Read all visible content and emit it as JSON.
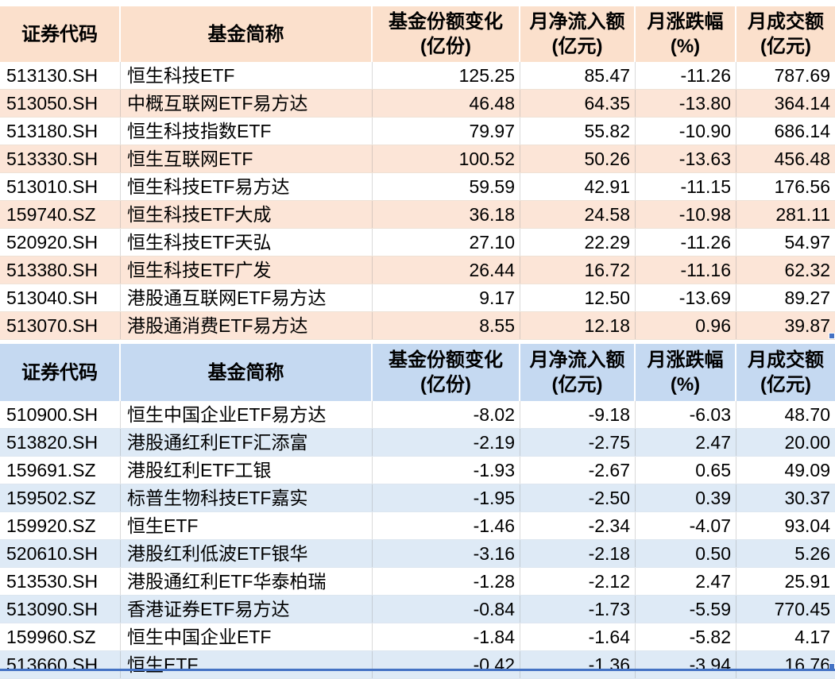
{
  "row_keys": [
    "code",
    "name",
    "share_change",
    "net_inflow",
    "pct_change",
    "turnover"
  ],
  "columns": [
    {
      "title": "证券代码",
      "sub": ""
    },
    {
      "title": "基金简称",
      "sub": ""
    },
    {
      "title": "基金份额变化",
      "sub": "(亿份)"
    },
    {
      "title": "月净流入额",
      "sub": "(亿元)"
    },
    {
      "title": "月涨跌幅",
      "sub": "(%)"
    },
    {
      "title": "月成交额",
      "sub": "(亿元)"
    }
  ],
  "tables": [
    {
      "theme": {
        "header_bg": "#FBE0CC",
        "stripe_bg": "#FCE5D7"
      },
      "rows": [
        {
          "code": "513130.SH",
          "name": "恒生科技ETF",
          "share_change": "125.25",
          "net_inflow": "85.47",
          "pct_change": "-11.26",
          "turnover": "787.69"
        },
        {
          "code": "513050.SH",
          "name": "中概互联网ETF易方达",
          "share_change": "46.48",
          "net_inflow": "64.35",
          "pct_change": "-13.80",
          "turnover": "364.14"
        },
        {
          "code": "513180.SH",
          "name": "恒生科技指数ETF",
          "share_change": "79.97",
          "net_inflow": "55.82",
          "pct_change": "-10.90",
          "turnover": "686.14"
        },
        {
          "code": "513330.SH",
          "name": "恒生互联网ETF",
          "share_change": "100.52",
          "net_inflow": "50.26",
          "pct_change": "-13.63",
          "turnover": "456.48"
        },
        {
          "code": "513010.SH",
          "name": "恒生科技ETF易方达",
          "share_change": "59.59",
          "net_inflow": "42.91",
          "pct_change": "-11.15",
          "turnover": "176.56"
        },
        {
          "code": "159740.SZ",
          "name": "恒生科技ETF大成",
          "share_change": "36.18",
          "net_inflow": "24.58",
          "pct_change": "-10.98",
          "turnover": "281.11"
        },
        {
          "code": "520920.SH",
          "name": "恒生科技ETF天弘",
          "share_change": "27.10",
          "net_inflow": "22.29",
          "pct_change": "-11.26",
          "turnover": "54.97"
        },
        {
          "code": "513380.SH",
          "name": "恒生科技ETF广发",
          "share_change": "26.44",
          "net_inflow": "16.72",
          "pct_change": "-11.16",
          "turnover": "62.32"
        },
        {
          "code": "513040.SH",
          "name": "港股通互联网ETF易方达",
          "share_change": "9.17",
          "net_inflow": "12.50",
          "pct_change": "-13.69",
          "turnover": "89.27"
        },
        {
          "code": "513070.SH",
          "name": "港股通消费ETF易方达",
          "share_change": "8.55",
          "net_inflow": "12.18",
          "pct_change": "0.96",
          "turnover": "39.87"
        }
      ]
    },
    {
      "theme": {
        "header_bg": "#C5D9F1",
        "stripe_bg": "#DEEAF6"
      },
      "rows": [
        {
          "code": "510900.SH",
          "name": "恒生中国企业ETF易方达",
          "share_change": "-8.02",
          "net_inflow": "-9.18",
          "pct_change": "-6.03",
          "turnover": "48.70"
        },
        {
          "code": "513820.SH",
          "name": "港股通红利ETF汇添富",
          "share_change": "-2.19",
          "net_inflow": "-2.75",
          "pct_change": "2.47",
          "turnover": "20.00"
        },
        {
          "code": "159691.SZ",
          "name": "港股红利ETF工银",
          "share_change": "-1.93",
          "net_inflow": "-2.67",
          "pct_change": "0.65",
          "turnover": "49.09"
        },
        {
          "code": "159502.SZ",
          "name": "标普生物科技ETF嘉实",
          "share_change": "-1.95",
          "net_inflow": "-2.50",
          "pct_change": "0.39",
          "turnover": "30.37"
        },
        {
          "code": "159920.SZ",
          "name": "恒生ETF",
          "share_change": "-1.46",
          "net_inflow": "-2.34",
          "pct_change": "-4.07",
          "turnover": "93.04"
        },
        {
          "code": "520610.SH",
          "name": "港股红利低波ETF银华",
          "share_change": "-3.16",
          "net_inflow": "-2.18",
          "pct_change": "0.50",
          "turnover": "5.26"
        },
        {
          "code": "513530.SH",
          "name": "港股通红利ETF华泰柏瑞",
          "share_change": "-1.28",
          "net_inflow": "-2.12",
          "pct_change": "2.47",
          "turnover": "25.91"
        },
        {
          "code": "513090.SH",
          "name": "香港证券ETF易方达",
          "share_change": "-0.84",
          "net_inflow": "-1.73",
          "pct_change": "-5.59",
          "turnover": "770.45"
        },
        {
          "code": "159960.SZ",
          "name": "恒生中国企业ETF",
          "share_change": "-1.84",
          "net_inflow": "-1.64",
          "pct_change": "-5.82",
          "turnover": "4.17"
        },
        {
          "code": "513660.SH",
          "name": "恒生ETF",
          "share_change": "-0.42",
          "net_inflow": "-1.36",
          "pct_change": "-3.94",
          "turnover": "16.76"
        }
      ]
    }
  ],
  "selection": {
    "border_color": "#4472C4"
  }
}
